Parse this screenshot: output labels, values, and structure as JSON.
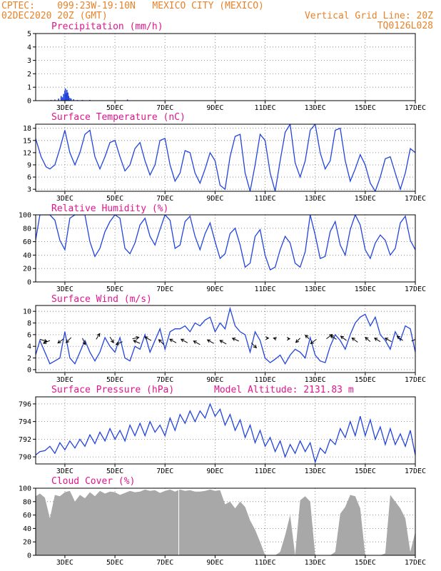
{
  "header": {
    "line1": "CPTEC:    099:23W-19:10N   MEXICO CITY (MEXICO)",
    "line2": "02DEC2020 20Z (GMT)",
    "vgrid": "Vertical Grid Line: 20Z",
    "code": "TQ0126L028"
  },
  "colors": {
    "header": "#e8822a",
    "title": "#e0158c",
    "line": "#2244dd",
    "cloud": "#a8a8a8",
    "grid": "#777777",
    "arrow": "#000000"
  },
  "x_axis": {
    "min": 1.833,
    "max": 17.0,
    "tick_days": [
      3,
      5,
      7,
      9,
      11,
      13,
      15,
      17
    ],
    "tick_labels": [
      "3DEC",
      "5DEC",
      "7DEC",
      "9DEC",
      "11DEC",
      "13DEC",
      "15DEC",
      "17DEC"
    ]
  },
  "chart_data": [
    {
      "id": "precip",
      "type": "bar",
      "title": "Precipitation (mm/h)",
      "ylim": [
        0,
        5
      ],
      "yticks": [
        0,
        1,
        2,
        3,
        4,
        5
      ],
      "x": [
        2.45,
        2.6,
        2.75,
        2.85,
        2.9,
        2.95,
        3.0,
        3.02,
        3.05,
        3.08,
        3.12,
        3.15,
        3.2,
        3.25,
        3.35,
        3.5,
        3.7,
        4.0,
        4.5,
        5.5,
        6.5
      ],
      "values": [
        0.05,
        0.08,
        0.15,
        0.35,
        0.25,
        0.5,
        0.75,
        0.9,
        0.55,
        0.8,
        0.6,
        0.35,
        0.2,
        0.15,
        0.1,
        0.05,
        0.05,
        0.05,
        0.03,
        0.08,
        0.03
      ]
    },
    {
      "id": "temp",
      "type": "line",
      "title": "Surface Temperature (nC)",
      "ylim": [
        2.5,
        19
      ],
      "yticks": [
        3,
        6,
        9,
        12,
        15,
        18
      ],
      "x": [
        1.83,
        2.05,
        2.25,
        2.4,
        2.6,
        2.8,
        3.0,
        3.2,
        3.4,
        3.6,
        3.8,
        4.0,
        4.2,
        4.4,
        4.6,
        4.8,
        5.0,
        5.2,
        5.4,
        5.6,
        5.8,
        6.0,
        6.2,
        6.4,
        6.6,
        6.8,
        7.0,
        7.2,
        7.4,
        7.6,
        7.8,
        8.0,
        8.2,
        8.4,
        8.6,
        8.8,
        9.0,
        9.2,
        9.4,
        9.6,
        9.8,
        10.0,
        10.2,
        10.4,
        10.6,
        10.8,
        11.0,
        11.2,
        11.4,
        11.6,
        11.8,
        12.0,
        12.2,
        12.4,
        12.6,
        12.8,
        13.0,
        13.2,
        13.4,
        13.6,
        13.8,
        14.0,
        14.2,
        14.4,
        14.6,
        14.8,
        15.0,
        15.2,
        15.4,
        15.6,
        15.8,
        16.0,
        16.2,
        16.4,
        16.6,
        16.8,
        17.0
      ],
      "values": [
        15.5,
        11,
        8.5,
        8,
        9,
        13,
        17.5,
        12,
        9,
        12,
        16.5,
        17.5,
        11,
        8,
        11,
        14.5,
        15,
        11,
        7.5,
        9,
        13,
        14.5,
        10,
        6.5,
        9,
        15,
        15.5,
        9,
        5,
        7,
        12.5,
        12,
        7,
        4.5,
        8,
        12,
        10,
        4,
        3,
        11,
        16,
        16.5,
        7,
        2.5,
        9,
        16.5,
        15,
        7,
        2.5,
        10,
        17,
        19,
        9.5,
        6,
        10,
        17.5,
        19,
        12,
        8,
        10,
        17.5,
        18,
        10,
        5,
        8,
        11.5,
        9,
        4.5,
        2.5,
        6,
        10.5,
        11,
        7,
        3,
        7,
        13,
        12
      ]
    },
    {
      "id": "rh",
      "type": "line",
      "title": "Relative Humidity (%)",
      "ylim": [
        0,
        100
      ],
      "yticks": [
        0,
        20,
        40,
        60,
        80,
        100
      ],
      "x": [
        1.83,
        2.0,
        2.2,
        2.4,
        2.6,
        2.8,
        3.0,
        3.2,
        3.4,
        3.6,
        3.8,
        4.0,
        4.2,
        4.4,
        4.6,
        4.8,
        5.0,
        5.2,
        5.4,
        5.6,
        5.8,
        6.0,
        6.2,
        6.4,
        6.6,
        6.8,
        7.0,
        7.2,
        7.4,
        7.6,
        7.8,
        8.0,
        8.2,
        8.4,
        8.6,
        8.8,
        9.0,
        9.2,
        9.4,
        9.6,
        9.8,
        10.0,
        10.2,
        10.4,
        10.6,
        10.8,
        11.0,
        11.2,
        11.4,
        11.6,
        11.8,
        12.0,
        12.2,
        12.4,
        12.6,
        12.8,
        13.0,
        13.2,
        13.4,
        13.6,
        13.8,
        14.0,
        14.2,
        14.4,
        14.6,
        14.8,
        15.0,
        15.2,
        15.4,
        15.6,
        15.8,
        16.0,
        16.2,
        16.4,
        16.6,
        16.8,
        17.0
      ],
      "values": [
        62,
        100,
        100,
        100,
        92,
        62,
        48,
        95,
        100,
        100,
        100,
        60,
        38,
        50,
        75,
        90,
        100,
        95,
        50,
        42,
        58,
        85,
        95,
        68,
        55,
        78,
        100,
        92,
        50,
        55,
        90,
        98,
        68,
        48,
        72,
        88,
        60,
        35,
        42,
        72,
        80,
        55,
        22,
        28,
        68,
        78,
        40,
        18,
        22,
        48,
        68,
        58,
        28,
        22,
        45,
        100,
        70,
        35,
        38,
        75,
        90,
        55,
        40,
        78,
        100,
        85,
        48,
        35,
        58,
        70,
        62,
        40,
        50,
        88,
        98,
        62,
        48
      ]
    },
    {
      "id": "wind",
      "type": "line",
      "title": "Surface Wind (m/s)",
      "ylim": [
        -0.5,
        11
      ],
      "yticks": [
        0,
        2,
        4,
        6,
        8,
        10
      ],
      "x": [
        1.83,
        2.0,
        2.2,
        2.4,
        2.6,
        2.8,
        3.0,
        3.2,
        3.4,
        3.6,
        3.8,
        4.0,
        4.2,
        4.4,
        4.6,
        4.8,
        5.0,
        5.2,
        5.4,
        5.6,
        5.8,
        6.0,
        6.2,
        6.4,
        6.6,
        6.8,
        7.0,
        7.2,
        7.4,
        7.6,
        7.8,
        8.0,
        8.2,
        8.4,
        8.6,
        8.8,
        9.0,
        9.2,
        9.4,
        9.6,
        9.8,
        10.0,
        10.2,
        10.4,
        10.6,
        10.8,
        11.0,
        11.2,
        11.4,
        11.6,
        11.8,
        12.0,
        12.2,
        12.4,
        12.6,
        12.8,
        13.0,
        13.2,
        13.4,
        13.6,
        13.8,
        14.0,
        14.2,
        14.4,
        14.6,
        14.8,
        15.0,
        15.2,
        15.4,
        15.6,
        15.8,
        16.0,
        16.2,
        16.4,
        16.6,
        16.8,
        17.0
      ],
      "values": [
        2.5,
        5,
        3,
        1,
        1.5,
        2,
        6.5,
        2,
        1,
        3,
        5,
        3,
        1.5,
        3,
        5.5,
        4,
        3,
        5.5,
        2,
        1.5,
        4,
        3.5,
        6,
        3,
        5,
        7,
        3.5,
        6.5,
        7,
        7,
        7.5,
        6.5,
        8,
        7.5,
        8.5,
        9,
        6.5,
        8,
        7,
        10.5,
        7.5,
        6.5,
        6,
        3,
        6.5,
        5,
        2,
        1.2,
        1.8,
        2.5,
        1,
        2.5,
        3.5,
        3,
        2,
        5.5,
        2.5,
        1.5,
        1.2,
        4,
        6,
        5,
        3.5,
        6,
        8,
        9,
        9.5,
        7.5,
        9,
        6,
        5,
        3.5,
        6.5,
        5,
        7.5,
        7,
        3
      ]
    },
    {
      "id": "pres",
      "type": "line",
      "title": "Surface Pressure (hPa)",
      "annotation": "Model Altitude: 2131.83 m",
      "ylim": [
        789.2,
        796.8
      ],
      "yticks": [
        790,
        792,
        794,
        796
      ],
      "x": [
        1.83,
        2.0,
        2.2,
        2.4,
        2.6,
        2.8,
        3.0,
        3.2,
        3.4,
        3.6,
        3.8,
        4.0,
        4.2,
        4.4,
        4.6,
        4.8,
        5.0,
        5.2,
        5.4,
        5.6,
        5.8,
        6.0,
        6.2,
        6.4,
        6.6,
        6.8,
        7.0,
        7.2,
        7.4,
        7.6,
        7.8,
        8.0,
        8.2,
        8.4,
        8.6,
        8.8,
        9.0,
        9.2,
        9.4,
        9.6,
        9.8,
        10.0,
        10.2,
        10.4,
        10.6,
        10.8,
        11.0,
        11.2,
        11.4,
        11.6,
        11.8,
        12.0,
        12.2,
        12.4,
        12.6,
        12.8,
        13.0,
        13.2,
        13.4,
        13.6,
        13.8,
        14.0,
        14.2,
        14.4,
        14.6,
        14.8,
        15.0,
        15.2,
        15.4,
        15.6,
        15.8,
        16.0,
        16.2,
        16.4,
        16.6,
        16.8,
        17.0
      ],
      "values": [
        790.2,
        790.6,
        790.7,
        791.2,
        790.4,
        791.6,
        790.8,
        791.8,
        791.0,
        792.0,
        791.2,
        792.5,
        791.5,
        792.8,
        791.8,
        793.2,
        792.0,
        793.0,
        791.8,
        793.6,
        792.4,
        793.8,
        792.4,
        794.0,
        792.8,
        793.6,
        792.4,
        794.4,
        793.0,
        794.8,
        793.8,
        795.2,
        794.0,
        795.2,
        794.4,
        796.0,
        794.6,
        795.4,
        793.6,
        794.8,
        793.0,
        794.2,
        792.2,
        793.6,
        791.6,
        793.0,
        791.2,
        792.2,
        790.6,
        791.8,
        790.0,
        791.4,
        790.4,
        791.8,
        790.6,
        791.6,
        789.4,
        791.0,
        790.4,
        792.0,
        791.4,
        793.2,
        792.2,
        794.0,
        792.4,
        794.6,
        792.4,
        794.2,
        792.0,
        793.4,
        791.4,
        793.2,
        791.4,
        792.6,
        791.2,
        793.0,
        790.2
      ]
    },
    {
      "id": "cloud",
      "type": "area",
      "title": "Cloud Cover (%)",
      "ylim": [
        0,
        100
      ],
      "yticks": [
        0,
        20,
        40,
        60,
        80,
        100
      ],
      "x": [
        1.83,
        2.0,
        2.2,
        2.4,
        2.6,
        2.8,
        3.0,
        3.2,
        3.4,
        3.6,
        3.8,
        4.0,
        4.2,
        4.4,
        4.6,
        4.8,
        5.0,
        5.2,
        5.4,
        5.6,
        5.8,
        6.0,
        6.2,
        6.4,
        6.6,
        6.8,
        7.0,
        7.2,
        7.4,
        7.6,
        7.8,
        8.0,
        8.2,
        8.4,
        8.6,
        8.8,
        9.0,
        9.2,
        9.4,
        9.6,
        9.8,
        10.0,
        10.2,
        10.4,
        10.6,
        10.8,
        11.0,
        11.2,
        11.4,
        11.6,
        11.8,
        12.0,
        12.2,
        12.4,
        12.6,
        12.8,
        13.0,
        13.2,
        13.4,
        13.6,
        13.8,
        14.0,
        14.2,
        14.4,
        14.6,
        14.8,
        15.0,
        15.2,
        15.4,
        15.6,
        15.8,
        16.0,
        16.2,
        16.4,
        16.6,
        16.8,
        17.0
      ],
      "values": [
        88,
        92,
        86,
        55,
        90,
        88,
        94,
        96,
        80,
        90,
        85,
        94,
        88,
        96,
        92,
        95,
        94,
        90,
        93,
        96,
        94,
        95,
        98,
        96,
        97,
        93,
        96,
        98,
        95,
        98,
        96,
        97,
        95,
        95,
        96,
        98,
        96,
        97,
        76,
        80,
        70,
        80,
        72,
        52,
        38,
        20,
        0,
        0,
        0,
        5,
        30,
        60,
        0,
        82,
        88,
        80,
        0,
        0,
        0,
        0,
        5,
        62,
        72,
        90,
        88,
        70,
        0,
        0,
        0,
        0,
        3,
        90,
        80,
        70,
        55,
        5,
        35
      ]
    },
    {
      "id": "wind_vectors",
      "type": "scatter",
      "x": [
        2.0,
        2.4,
        2.95,
        3.25,
        3.7,
        4.25,
        4.8,
        5.3,
        5.7,
        6.0,
        6.45,
        6.95,
        7.45,
        7.9,
        8.4,
        8.95,
        9.45,
        9.95,
        10.45,
        11.05,
        11.45,
        11.9,
        12.4,
        12.75,
        13.05,
        13.45,
        13.85,
        14.25,
        14.7,
        15.2,
        15.6,
        16.05,
        16.5,
        16.85
      ],
      "values": [
        5.2,
        5.0,
        5.3,
        5.5,
        5.4,
        5.2,
        5.6,
        4.8,
        5.3,
        4.5,
        5.0,
        4.3,
        4.6,
        4.6,
        4.3,
        4.5,
        4.4,
        4.9,
        4.6,
        5.4,
        5.3,
        5.3,
        5.4,
        5.3,
        5.2,
        5.3,
        5.2,
        5.0,
        4.7,
        4.8,
        4.8,
        4.8,
        5.0,
        4.9
      ],
      "u": [
        1.0,
        -0.9,
        -0.8,
        -0.7,
        0.4,
        0.5,
        0.5,
        -0.9,
        0.9,
        -0.9,
        -0.9,
        -0.7,
        -0.9,
        -0.9,
        -0.9,
        -0.9,
        -0.9,
        -0.9,
        0.7,
        0.3,
        -0.4,
        0.3,
        -0.6,
        -0.5,
        -0.8,
        0.8,
        -0.8,
        -0.8,
        -0.8,
        -0.7,
        -0.8,
        -0.9,
        -0.8,
        0.9
      ],
      "v": [
        -0.3,
        -0.4,
        -0.6,
        -0.7,
        -0.9,
        0.8,
        -0.8,
        -0.4,
        0.2,
        0.4,
        0.5,
        0.7,
        0.5,
        0.5,
        0.5,
        0.5,
        0.5,
        0.4,
        -0.7,
        0.0,
        0.1,
        0.0,
        -0.6,
        0.5,
        -0.6,
        0.6,
        0.5,
        0.6,
        0.6,
        0.6,
        0.5,
        0.5,
        0.6,
        0.4
      ]
    }
  ]
}
